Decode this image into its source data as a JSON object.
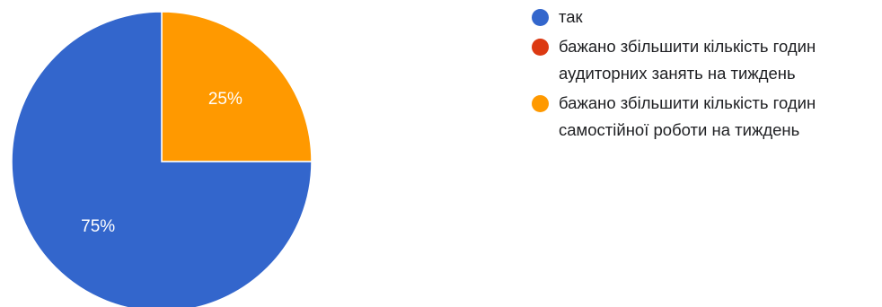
{
  "chart_data": {
    "type": "pie",
    "slices": [
      {
        "label": "так",
        "value": 75,
        "value_label": "75%",
        "color": "#3366cc"
      },
      {
        "label": "бажано збільшити кількість годин аудиторних занять на тиждень",
        "value": 0,
        "value_label": "",
        "color": "#dc3912"
      },
      {
        "label": "бажано збільшити кількість годин самостійної роботи на тиждень",
        "value": 25,
        "value_label": "25%",
        "color": "#ff9900"
      }
    ],
    "legend_position": "right",
    "start_angle_deg": 0,
    "direction": "clockwise"
  },
  "legend": {
    "items": [
      {
        "label": "так",
        "color": "#3366cc"
      },
      {
        "label": "бажано збільшити кількість годин аудиторних занять на тиждень",
        "color": "#dc3912"
      },
      {
        "label": "бажано збільшити кількість годин самостійної роботи на тиждень",
        "color": "#ff9900"
      }
    ]
  }
}
